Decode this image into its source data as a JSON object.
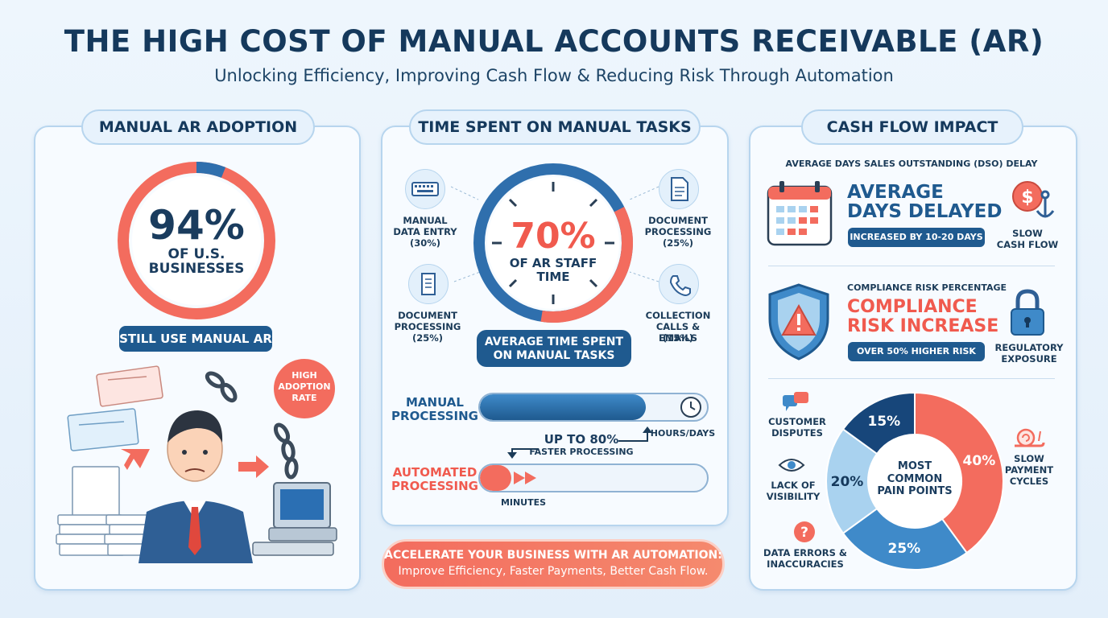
{
  "header": {
    "title": "THE HIGH COST OF MANUAL ACCOUNTS RECEIVABLE (AR)",
    "subtitle": "Unlocking Efficiency, Improving Cash Flow & Reducing Risk Through Automation"
  },
  "panel1": {
    "heading": "MANUAL AR ADOPTION",
    "percent": "94%",
    "percent_label_1": "OF U.S.",
    "percent_label_2": "BUSINESSES",
    "adoption_fraction": 0.94,
    "badge": "STILL USE MANUAL AR",
    "bubble_1": "HIGH",
    "bubble_2": "ADOPTION",
    "bubble_3": "RATE"
  },
  "panel2": {
    "heading": "TIME SPENT ON MANUAL TASKS",
    "gauge_value": "70%",
    "gauge_label_1": "OF AR STAFF",
    "gauge_label_2": "TIME",
    "gauge_fraction": 0.7,
    "tasks": [
      {
        "label_1": "MANUAL",
        "label_2": "DATA ENTRY",
        "label_3": "(30%)",
        "icon": "keyboard-icon"
      },
      {
        "label_1": "DOCUMENT",
        "label_2": "PROCESSING",
        "label_3": "(25%)",
        "icon": "document-icon"
      },
      {
        "label_1": "DOCUMENT",
        "label_2": "PROCESSING",
        "label_3": "(25%)",
        "icon": "scroll-icon"
      },
      {
        "label_1": "COLLECTION",
        "label_2": "CALLS & EMAILS",
        "label_3": "(15%)",
        "icon": "phone-icon"
      }
    ],
    "avg_badge_1": "AVERAGE TIME SPENT",
    "avg_badge_2": "ON MANUAL TASKS",
    "manual_label_1": "MANUAL",
    "manual_label_2": "PROCESSING",
    "manual_unit": "HOURS/DAYS",
    "manual_fill": 0.73,
    "faster_value": "UP TO 80%",
    "faster_label": "FASTER PROCESSING",
    "auto_label_1": "AUTOMATED",
    "auto_label_2": "PROCESSING",
    "auto_unit": "MINUTES",
    "auto_fill": 0.14
  },
  "cta": {
    "line_1": "ACCELERATE YOUR BUSINESS WITH AR AUTOMATION:",
    "line_2": "Improve Efficiency, Faster Payments, Better Cash Flow."
  },
  "panel3": {
    "heading": "CASH FLOW IMPACT",
    "dso_caption": "AVERAGE DAYS SALES OUTSTANDING (DSO) DELAY",
    "dso_title_1": "AVERAGE",
    "dso_title_2": "DAYS DELAYED",
    "dso_badge": "INCREASED BY 10-20 DAYS",
    "slow_cash_1": "SLOW",
    "slow_cash_2": "CASH FLOW",
    "compliance_caption": "COMPLIANCE RISK PERCENTAGE",
    "compliance_title_1": "COMPLIANCE",
    "compliance_title_2": "RISK INCREASE",
    "compliance_badge": "OVER 50% HIGHER RISK",
    "regulatory_1": "REGULATORY",
    "regulatory_2": "EXPOSURE",
    "pain_center_1": "MOST",
    "pain_center_2": "COMMON",
    "pain_center_3": "PAIN POINTS",
    "pain_labels": {
      "customer_disputes_1": "CUSTOMER",
      "customer_disputes_2": "DISPUTES",
      "lack_visibility_1": "LACK OF",
      "lack_visibility_2": "VISIBILITY",
      "data_errors_1": "DATA ERRORS &",
      "data_errors_2": "INACCURACIES",
      "slow_payment_1": "SLOW",
      "slow_payment_2": "PAYMENT",
      "slow_payment_3": "CYCLES"
    }
  },
  "chart_data": {
    "type": "pie",
    "title": "",
    "slices": [
      {
        "label": "40%",
        "value": 40,
        "color": "#f36c5e"
      },
      {
        "label": "25%",
        "value": 25,
        "color": "#3f8ac9"
      },
      {
        "label": "20%",
        "value": 20,
        "color": "#a9d2ef"
      },
      {
        "label": "15%",
        "value": 15,
        "color": "#17467a"
      }
    ]
  },
  "colors": {
    "navy": "#15395c",
    "accent_red": "#f05a4e",
    "accent_blue": "#1f5a8f",
    "light_blue": "#a9d2ef"
  }
}
